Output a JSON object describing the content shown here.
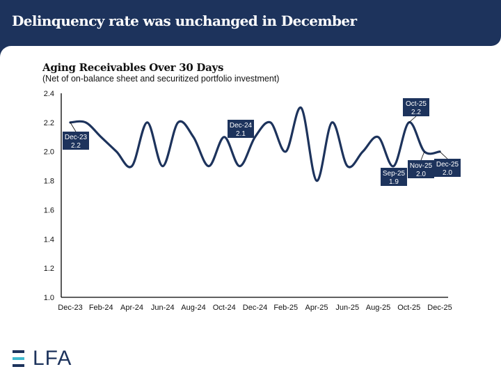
{
  "header": {
    "title": "Delinquency rate was unchanged in December"
  },
  "colors": {
    "brand_navy": "#1d335c",
    "line": "#1d335c",
    "logo_teal": "#3fb9cf"
  },
  "logo": {
    "text": "LFA",
    "full_name": "ELFA"
  },
  "chart_data": {
    "type": "line",
    "title": "Aging Receivables Over 30 Days",
    "subtitle": "(Net of on-balance sheet and securitized portfolio investment)",
    "xlabel": "",
    "ylabel": "",
    "ylim": [
      1.0,
      2.4
    ],
    "yticks": [
      "1.0",
      "1.2",
      "1.4",
      "1.6",
      "1.8",
      "2.0",
      "2.2",
      "2.4"
    ],
    "ytick_values": [
      1.0,
      1.2,
      1.4,
      1.6,
      1.8,
      2.0,
      2.2,
      2.4
    ],
    "x": [
      "Dec-23",
      "Jan-24",
      "Feb-24",
      "Mar-24",
      "Apr-24",
      "May-24",
      "Jun-24",
      "Jul-24",
      "Aug-24",
      "Sep-24",
      "Oct-24",
      "Nov-24",
      "Dec-24",
      "Jan-25",
      "Feb-25",
      "Mar-25",
      "Apr-25",
      "May-25",
      "Jun-25",
      "Jul-25",
      "Aug-25",
      "Sep-25",
      "Oct-25",
      "Nov-25",
      "Dec-25"
    ],
    "xtick_labels": [
      "Dec-23",
      "Feb-24",
      "Apr-24",
      "Jun-24",
      "Aug-24",
      "Oct-24",
      "Dec-24",
      "Feb-25",
      "Apr-25",
      "Jun-25",
      "Aug-25",
      "Oct-25",
      "Dec-25"
    ],
    "grid": false,
    "legend": "none",
    "series": [
      {
        "name": "Aging Receivables Over 30 Days",
        "values": [
          2.2,
          2.2,
          2.1,
          2.0,
          1.9,
          2.2,
          1.9,
          2.2,
          2.1,
          1.9,
          2.1,
          1.9,
          2.1,
          2.2,
          2.0,
          2.3,
          1.8,
          2.2,
          1.9,
          2.0,
          2.1,
          1.9,
          2.2,
          2.0,
          2.0
        ]
      }
    ],
    "annotations": [
      {
        "label": "Dec-23",
        "value": "2.2",
        "index": 0,
        "placement": "below-right",
        "leader": true
      },
      {
        "label": "Dec-24",
        "value": "2.1",
        "index": 12,
        "placement": "above-left",
        "leader": false
      },
      {
        "label": "Sep-25",
        "value": "1.9",
        "index": 21,
        "placement": "below",
        "leader": false
      },
      {
        "label": "Oct-25",
        "value": "2.2",
        "index": 22,
        "placement": "above",
        "leader": true
      },
      {
        "label": "Nov-25",
        "value": "2.0",
        "index": 23,
        "placement": "below",
        "leader": true
      },
      {
        "label": "Dec-25",
        "value": "2.0",
        "index": 24,
        "placement": "below-right",
        "leader": true
      }
    ]
  }
}
